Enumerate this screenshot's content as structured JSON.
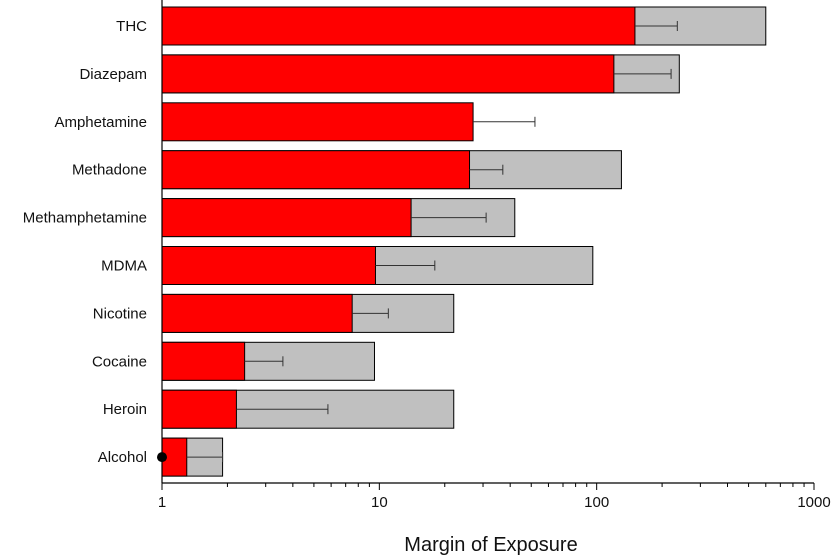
{
  "chart_data": {
    "type": "bar",
    "orientation": "horizontal",
    "xscale": "log",
    "xlim": [
      1,
      1000
    ],
    "xlabel": "Margin of Exposure",
    "ylabel": "",
    "title": "",
    "xticks": [
      "1",
      "10",
      "100",
      "1000"
    ],
    "grid": false,
    "legend": "none",
    "categories": [
      "THC",
      "Diazepam",
      "Amphetamine",
      "Methadone",
      "Methamphetamine",
      "MDMA",
      "Nicotine",
      "Cocaine",
      "Heroin",
      "Alcohol"
    ],
    "series": [
      {
        "values": [
          150,
          120,
          27,
          26,
          14,
          9.6,
          7.5,
          2.4,
          2.2,
          1.3
        ],
        "color": "#ff0000"
      },
      {
        "values": [
          600,
          240,
          null,
          130,
          42,
          96,
          22,
          9.5,
          22,
          1.9
        ],
        "color": "#c0c0c0"
      }
    ],
    "error_bars": [
      [
        150,
        235
      ],
      [
        120,
        220
      ],
      [
        27,
        52
      ],
      [
        26,
        37
      ],
      [
        14,
        31
      ],
      [
        9.6,
        18
      ],
      [
        7.5,
        11
      ],
      [
        2.4,
        3.6
      ],
      [
        2.2,
        5.8
      ],
      [
        1.3,
        1.9
      ]
    ],
    "markers": [
      {
        "category": "Alcohol",
        "x": 1,
        "shape": "dot",
        "color": "#000000"
      }
    ]
  }
}
